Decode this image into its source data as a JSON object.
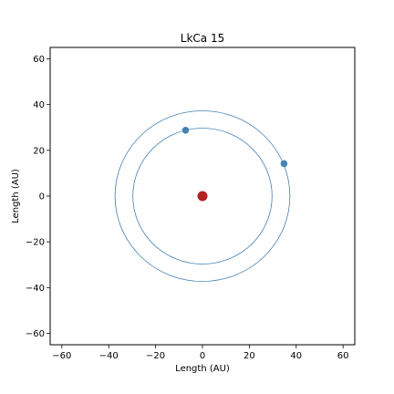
{
  "chart_data": {
    "type": "scatter",
    "title": "LkCa 15",
    "xlabel": "Length (AU)",
    "ylabel": "Length (AU)",
    "xlim": [
      -65,
      65
    ],
    "ylim": [
      -65,
      65
    ],
    "xticks": [
      -60,
      -40,
      -20,
      0,
      20,
      40,
      60
    ],
    "yticks": [
      -60,
      -40,
      -20,
      0,
      20,
      40,
      60
    ],
    "grid": false,
    "star": {
      "x": 0,
      "y": 0,
      "color": "#b22222"
    },
    "orbits": [
      {
        "radius": 29.7,
        "color": "#4682b4"
      },
      {
        "radius": 37.3,
        "color": "#4682b4"
      }
    ],
    "planets": [
      {
        "x": -7.2,
        "y": 28.8,
        "color": "#4682b4"
      },
      {
        "x": 34.8,
        "y": 14.2,
        "color": "#4682b4"
      }
    ]
  }
}
